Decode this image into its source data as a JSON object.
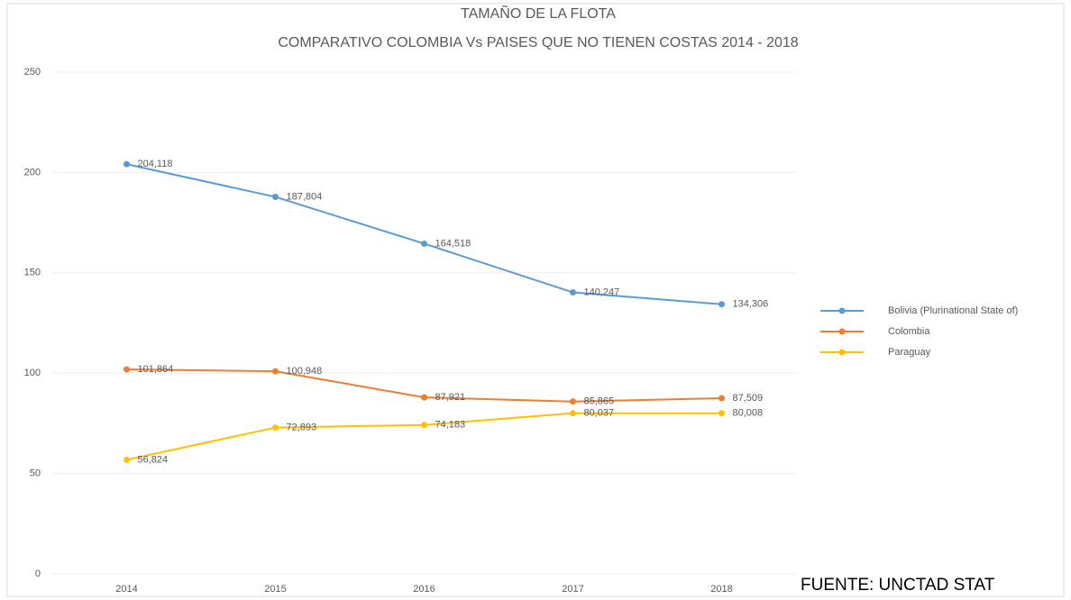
{
  "chart_data": {
    "type": "line",
    "title": "TAMAÑO DE LA FLOTA",
    "subtitle": "COMPARATIVO COLOMBIA Vs PAISES QUE NO TIENEN COSTAS 2014 - 2018",
    "annotation": "FUENTE: UNCTAD STAT",
    "categories": [
      "2014",
      "2015",
      "2016",
      "2017",
      "2018"
    ],
    "series": [
      {
        "name": "Bolivia (Plurinational State of)",
        "color": "#5b9bd5",
        "values": [
          204.118,
          187.804,
          164.518,
          140.247,
          134.306
        ],
        "value_labels": [
          "204,118",
          "187,804",
          "164,518",
          "140,247",
          "134,306"
        ]
      },
      {
        "name": "Colombia",
        "color": "#ed7d31",
        "values": [
          101.864,
          100.948,
          87.921,
          85.865,
          87.509
        ],
        "value_labels": [
          "101,864",
          "100,948",
          "87,921",
          "85,865",
          "87,509"
        ]
      },
      {
        "name": "Paraguay",
        "color": "#ffc000",
        "values": [
          56.824,
          72.893,
          74.183,
          80.037,
          80.008
        ],
        "value_labels": [
          "56,824",
          "72,893",
          "74,183",
          "80,037",
          "80,008"
        ]
      }
    ],
    "ylim": [
      0,
      250
    ],
    "yticks": [
      0,
      50,
      100,
      150,
      200,
      250
    ],
    "grid": true,
    "legend": "right"
  }
}
